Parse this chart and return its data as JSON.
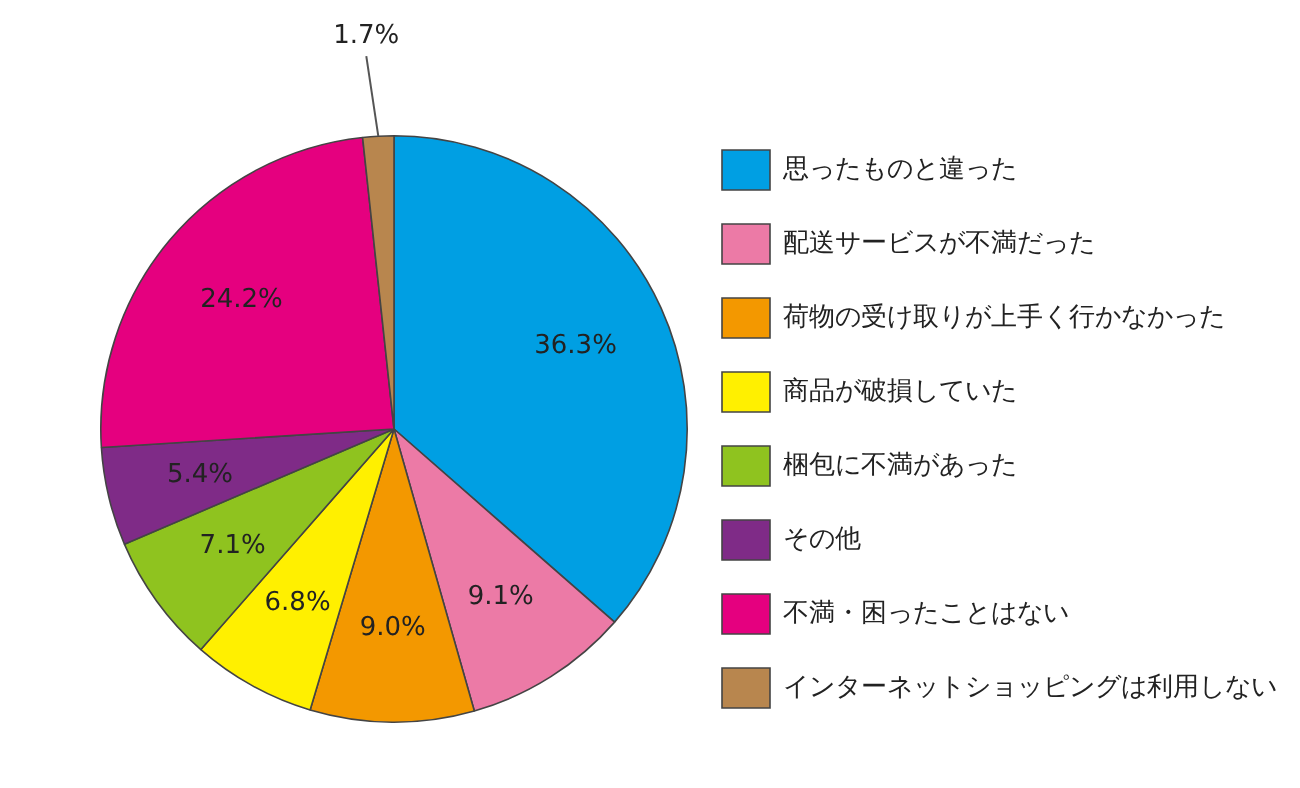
{
  "chart_data": {
    "type": "pie",
    "categories": [
      "思ったものと違った",
      "配送サービスが不満だった",
      "荷物の受け取りが上手く行かなかった",
      "商品が破損していた",
      "梱包に不満があった",
      "その他",
      "不満・困ったことはない",
      "インターネットショッピングは利用しない"
    ],
    "values": [
      36.3,
      9.1,
      9.0,
      6.8,
      7.1,
      5.4,
      24.2,
      1.7
    ],
    "value_labels": [
      "36.3%",
      "9.1%",
      "9.0%",
      "6.8%",
      "7.1%",
      "5.4%",
      "24.2%",
      "1.7%"
    ],
    "colors": [
      "#009fe3",
      "#ec7aa6",
      "#f39800",
      "#fff000",
      "#8fc31f",
      "#7f2b87",
      "#e5007f",
      "#b8864e"
    ],
    "legend": "right"
  }
}
